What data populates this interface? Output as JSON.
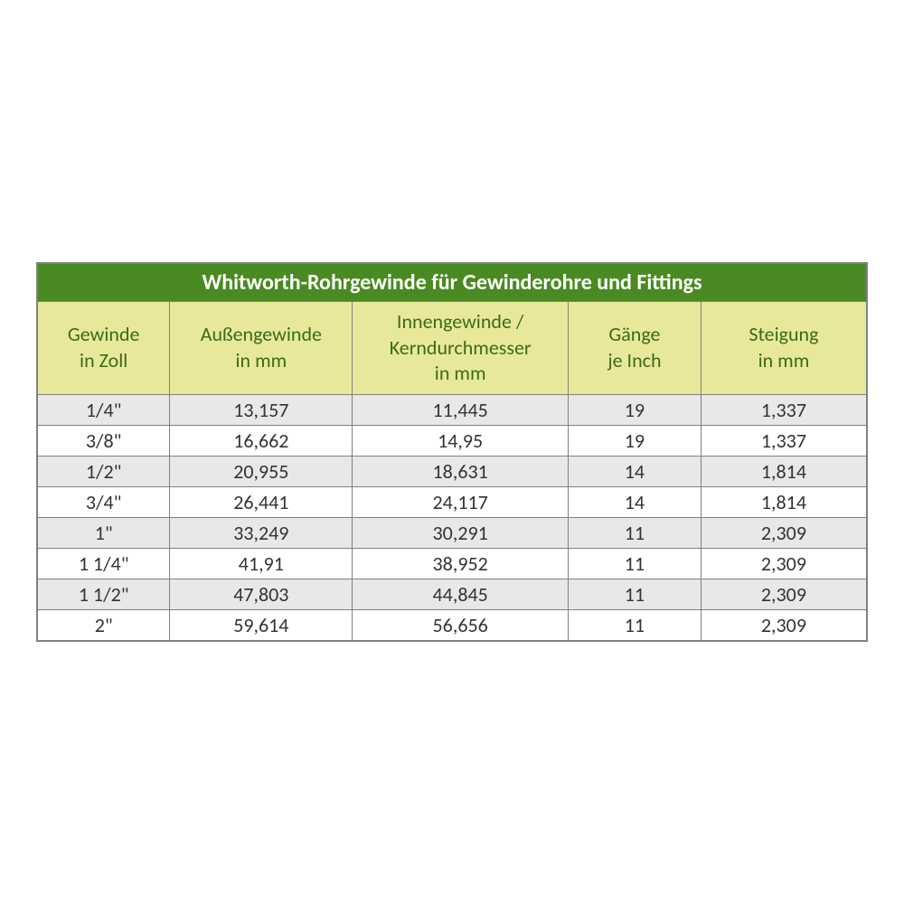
{
  "table": {
    "type": "table",
    "title": "Whitworth-Rohrgewinde für Gewinderohre und Fittings",
    "title_bg_color": "#4a8a22",
    "title_text_color": "#ffffff",
    "title_fontsize": 24,
    "header_bg_color": "#e8e89b",
    "header_text_color": "#3a6b1a",
    "header_fontsize": 22,
    "row_odd_bg_color": "#e8e8e8",
    "row_even_bg_color": "#ffffff",
    "cell_text_color": "#333333",
    "cell_fontsize": 22,
    "border_color": "#808080",
    "columns": [
      {
        "label_line1": "Gewinde",
        "label_line2": "in Zoll",
        "width_pct": 16
      },
      {
        "label_line1": "Außengewinde",
        "label_line2": "in mm",
        "width_pct": 22
      },
      {
        "label_line1": "Innengewinde /",
        "label_line2": "Kerndurchmesser",
        "label_line3": "in mm",
        "width_pct": 26
      },
      {
        "label_line1": "Gänge",
        "label_line2": "je Inch",
        "width_pct": 16
      },
      {
        "label_line1": "Steigung",
        "label_line2": "in mm",
        "width_pct": 20
      }
    ],
    "rows": [
      [
        "1/4\"",
        "13,157",
        "11,445",
        "19",
        "1,337"
      ],
      [
        "3/8\"",
        "16,662",
        "14,95",
        "19",
        "1,337"
      ],
      [
        "1/2\"",
        "20,955",
        "18,631",
        "14",
        "1,814"
      ],
      [
        "3/4\"",
        "26,441",
        "24,117",
        "14",
        "1,814"
      ],
      [
        "1\"",
        "33,249",
        "30,291",
        "11",
        "2,309"
      ],
      [
        "1 1/4\"",
        "41,91",
        "38,952",
        "11",
        "2,309"
      ],
      [
        "1 1/2\"",
        "47,803",
        "44,845",
        "11",
        "2,309"
      ],
      [
        "2\"",
        "59,614",
        "56,656",
        "11",
        "2,309"
      ]
    ]
  }
}
